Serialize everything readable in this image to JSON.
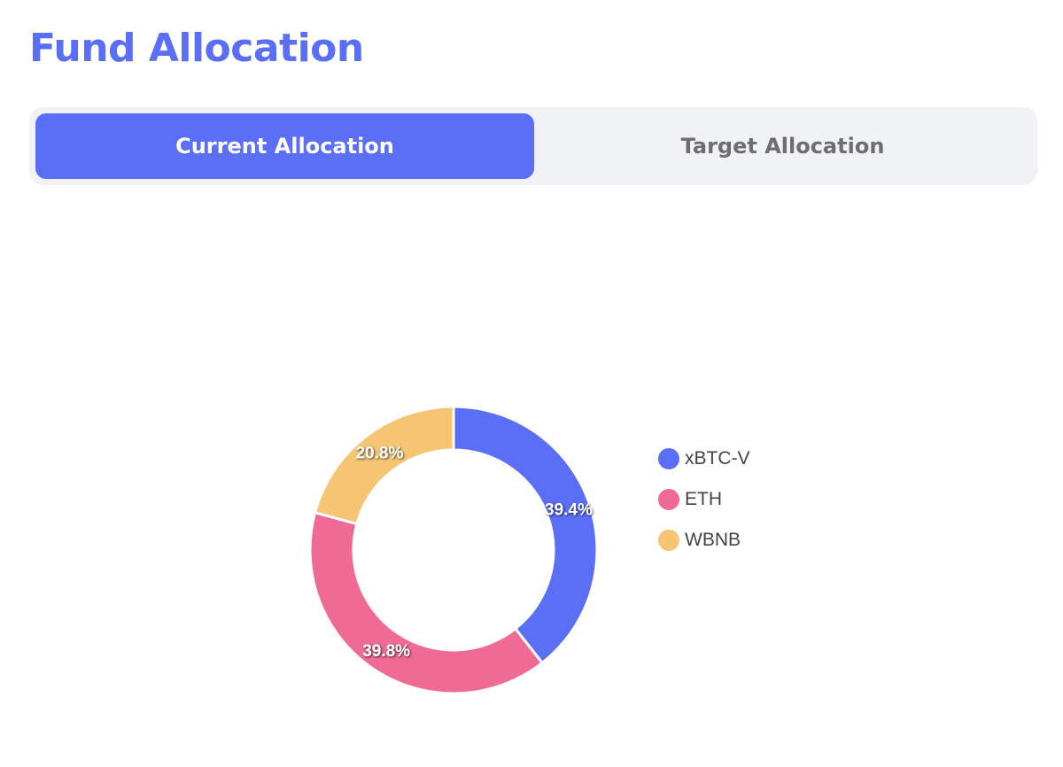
{
  "page": {
    "title": "Fund Allocation"
  },
  "tabs": [
    {
      "label": "Current Allocation",
      "active": true
    },
    {
      "label": "Target Allocation",
      "active": false
    }
  ],
  "colors": {
    "accent": "#5a6ff6",
    "tab_bg": "#f1f2f6",
    "inactive_text": "#6e6e6e"
  },
  "chart_data": {
    "type": "pie",
    "variant": "donut",
    "legend_position": "right",
    "slices": [
      {
        "name": "xBTC-V",
        "value": 39.4,
        "label": "39.4%",
        "color": "#5a6ff6"
      },
      {
        "name": "ETH",
        "value": 39.8,
        "label": "39.8%",
        "color": "#ef6b93"
      },
      {
        "name": "WBNB",
        "value": 20.8,
        "label": "20.8%",
        "color": "#f6c574"
      }
    ]
  }
}
